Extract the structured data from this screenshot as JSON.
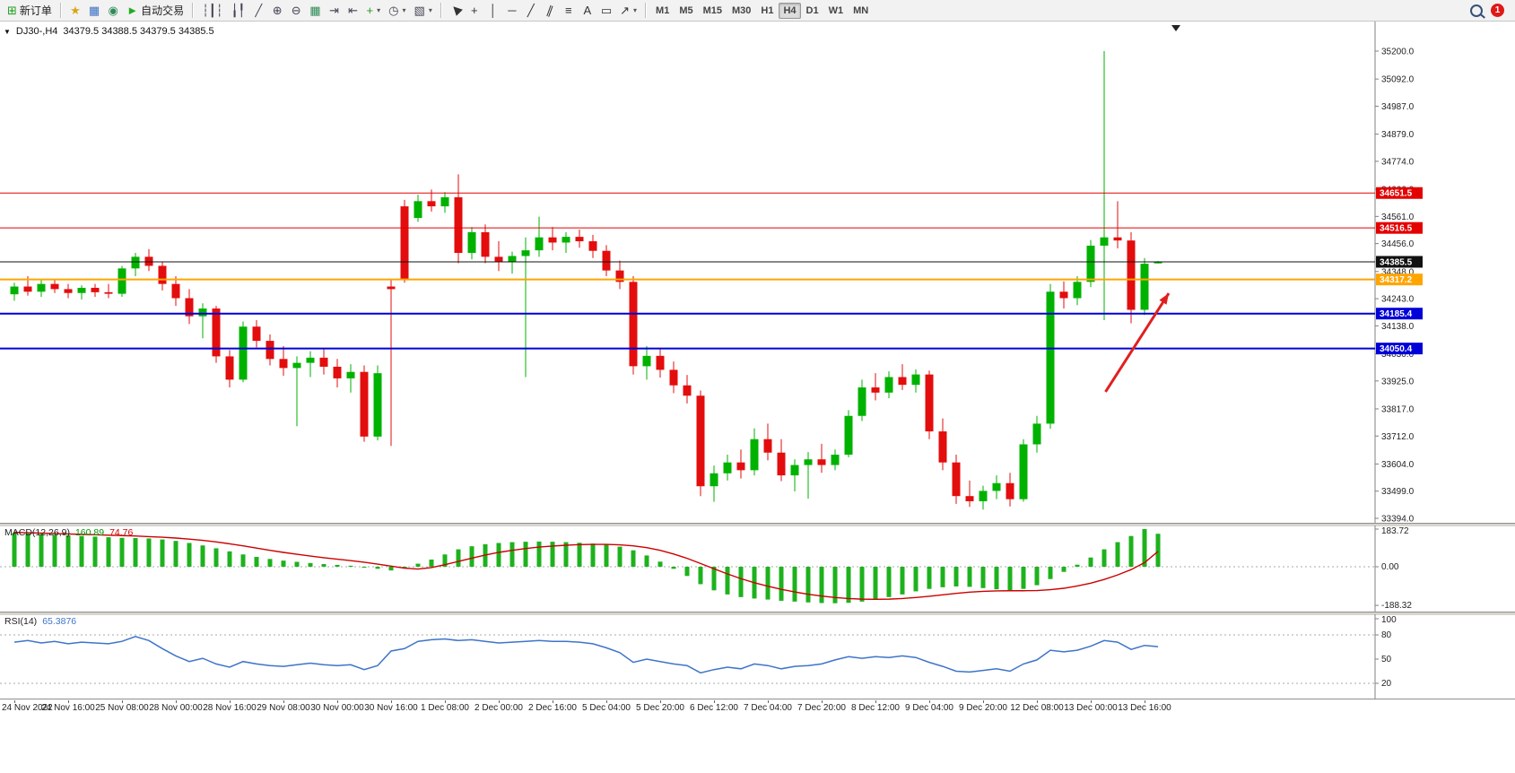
{
  "toolbar": {
    "new_order_label": "新订单",
    "autotrading_label": "自动交易",
    "items": [
      {
        "name": "new-order-button",
        "glyph": "⊞",
        "color": "#1d9e1d",
        "label": "新订单"
      },
      {
        "name": "sep"
      },
      {
        "name": "metaeditor-button",
        "glyph": "★",
        "color": "#d9a514"
      },
      {
        "name": "data-window-button",
        "glyph": "▦",
        "color": "#3a6fc4"
      },
      {
        "name": "market-watch-button",
        "glyph": "◉",
        "color": "#2e8b57"
      },
      {
        "name": "autotrading-button",
        "glyph": "►",
        "color": "#22aa22",
        "label": "自动交易"
      },
      {
        "name": "sep"
      },
      {
        "name": "bars-chart-button",
        "glyph": "┆┃┆",
        "color": "#445"
      },
      {
        "name": "candles-chart-button",
        "glyph": "╽╿",
        "color": "#445"
      },
      {
        "name": "line-chart-button",
        "glyph": "╱",
        "color": "#445"
      },
      {
        "name": "zoom-in-button",
        "glyph": "⊕",
        "color": "#445"
      },
      {
        "name": "zoom-out-button",
        "glyph": "⊖",
        "color": "#445"
      },
      {
        "name": "tile-windows-button",
        "glyph": "▦",
        "color": "#2e8b57"
      },
      {
        "name": "auto-scroll-button",
        "glyph": "⇥",
        "color": "#445"
      },
      {
        "name": "chart-shift-button",
        "glyph": "⇤",
        "color": "#445"
      },
      {
        "name": "new-indicator-button",
        "glyph": "+",
        "color": "#1d9e1d",
        "caret": true
      },
      {
        "name": "period-button",
        "glyph": "◷",
        "color": "#445",
        "caret": true
      },
      {
        "name": "template-button",
        "glyph": "▧",
        "color": "#445",
        "caret": true
      },
      {
        "name": "sep"
      },
      {
        "name": "cursor-button",
        "glyph": "▶",
        "color": "#333",
        "rot": -135
      },
      {
        "name": "crosshair-button",
        "glyph": "+",
        "color": "#333"
      },
      {
        "name": "vertical-line-button",
        "glyph": "│",
        "color": "#333"
      },
      {
        "name": "horizontal-line-button",
        "glyph": "─",
        "color": "#333"
      },
      {
        "name": "trendline-button",
        "glyph": "╱",
        "color": "#333"
      },
      {
        "name": "channel-button",
        "glyph": "∥",
        "color": "#333",
        "rot": 20
      },
      {
        "name": "fibonacci-button",
        "glyph": "≡",
        "color": "#333"
      },
      {
        "name": "text-button",
        "glyph": "A",
        "color": "#333"
      },
      {
        "name": "label-button",
        "glyph": "▭",
        "color": "#333"
      },
      {
        "name": "arrows-button",
        "glyph": "↗",
        "color": "#333",
        "caret": true
      },
      {
        "name": "sep"
      }
    ],
    "timeframes": [
      "M1",
      "M5",
      "M15",
      "M30",
      "H1",
      "H4",
      "D1",
      "W1",
      "MN"
    ],
    "active_timeframe": "H4",
    "notification_count": "1"
  },
  "glyphs": {
    "collapse": "▼",
    "caret": "▾",
    "scroll_marker": "▼"
  },
  "chart_header": {
    "symbol_period": "DJ30-,H4",
    "ohlc_text": "34379.5 34388.5 34379.5 34385.5"
  },
  "price_axis": {
    "ticks": [
      "35200.0",
      "35092.0",
      "34987.0",
      "34879.0",
      "34774.0",
      "34666.0",
      "34561.0",
      "34456.0",
      "34348.0",
      "34243.0",
      "34138.0",
      "34030.0",
      "33925.0",
      "33817.0",
      "33712.0",
      "33604.0",
      "33499.0",
      "33394.0"
    ]
  },
  "indicators": {
    "macd": {
      "label": "MACD(12,26,9)",
      "value_main": "160.89",
      "value_signal": "74.76",
      "axis_max": "183.72",
      "axis_zero": "0.00",
      "axis_min": "-188.32"
    },
    "rsi": {
      "label": "RSI(14)",
      "value": "65.3876",
      "axis_ticks": [
        "100",
        "80",
        "50",
        "20"
      ]
    }
  },
  "colors": {
    "up": "#00b200",
    "down": "#e30d0d",
    "macd_hist": "#1db21d",
    "macd_signal": "#cc0000",
    "rsi_line": "#3e74c9",
    "line_red": "#e30000",
    "line_orange": "#ffa500",
    "line_blue": "#0000d8",
    "bid_line": "#111111",
    "arrow": "#e02020",
    "axis": "#808080",
    "grid_dot": "#aaaaaa"
  },
  "chart_data": {
    "type": "candlestick",
    "symbol": "DJ30-",
    "timeframe": "H4",
    "bars": 86,
    "y_range": [
      33394,
      35200
    ],
    "current": {
      "open": 34379.5,
      "high": 34388.5,
      "low": 34379.5,
      "close": 34385.5,
      "bid": 34385.5
    },
    "x_labels": [
      "24 Nov 2022",
      "24 Nov 16:00",
      "25 Nov 08:00",
      "28 Nov 00:00",
      "28 Nov 16:00",
      "29 Nov 08:00",
      "30 Nov 00:00",
      "30 Nov 16:00",
      "1 Dec 08:00",
      "2 Dec 00:00",
      "2 Dec 16:00",
      "5 Dec 04:00",
      "5 Dec 20:00",
      "6 Dec 12:00",
      "7 Dec 04:00",
      "7 Dec 20:00",
      "8 Dec 12:00",
      "9 Dec 04:00",
      "9 Dec 20:00",
      "12 Dec 08:00",
      "13 Dec 00:00",
      "13 Dec 16:00"
    ],
    "bars_per_label": 4,
    "price_lines": [
      {
        "price": 34651.5,
        "label": "34651.5",
        "color_key": "line_red",
        "width": 1
      },
      {
        "price": 34516.5,
        "label": "34516.5",
        "color_key": "line_red",
        "width": 1
      },
      {
        "price": 34385.5,
        "label": "34385.5",
        "color_key": "bid_line",
        "width": 1
      },
      {
        "price": 34317.2,
        "label": "34317.2",
        "color_key": "line_orange",
        "width": 2
      },
      {
        "price": 34185.4,
        "label": "34185.4",
        "color_key": "line_blue",
        "width": 2
      },
      {
        "price": 34050.4,
        "label": "34050.4",
        "color_key": "line_blue",
        "width": 2
      }
    ],
    "annotations": [
      {
        "type": "arrow",
        "from_bar": 81.1,
        "from_price": 33883,
        "to_bar": 85.8,
        "to_price": 34264,
        "color_key": "arrow"
      }
    ],
    "candles": [
      [
        34260,
        34305,
        34235,
        34290
      ],
      [
        34290,
        34330,
        34255,
        34270
      ],
      [
        34270,
        34315,
        34250,
        34300
      ],
      [
        34300,
        34320,
        34265,
        34280
      ],
      [
        34280,
        34300,
        34245,
        34265
      ],
      [
        34265,
        34295,
        34240,
        34285
      ],
      [
        34285,
        34300,
        34250,
        34268
      ],
      [
        34268,
        34300,
        34245,
        34262
      ],
      [
        34262,
        34370,
        34250,
        34360
      ],
      [
        34360,
        34420,
        34330,
        34405
      ],
      [
        34405,
        34435,
        34350,
        34370
      ],
      [
        34370,
        34385,
        34275,
        34300
      ],
      [
        34300,
        34330,
        34215,
        34245
      ],
      [
        34245,
        34280,
        34145,
        34175
      ],
      [
        34175,
        34225,
        34090,
        34205
      ],
      [
        34205,
        34215,
        33995,
        34020
      ],
      [
        34020,
        34045,
        33900,
        33930
      ],
      [
        33930,
        34155,
        33920,
        34135
      ],
      [
        34135,
        34160,
        34055,
        34080
      ],
      [
        34080,
        34105,
        33985,
        34010
      ],
      [
        34010,
        34060,
        33945,
        33975
      ],
      [
        33975,
        34020,
        33750,
        33995
      ],
      [
        33995,
        34040,
        33940,
        34015
      ],
      [
        34015,
        34050,
        33950,
        33980
      ],
      [
        33980,
        34010,
        33900,
        33935
      ],
      [
        33935,
        33990,
        33880,
        33960
      ],
      [
        33960,
        33985,
        33690,
        33710
      ],
      [
        33710,
        33985,
        33695,
        33955
      ],
      [
        34290,
        34315,
        33674,
        34280
      ],
      [
        34600,
        34625,
        34305,
        34320
      ],
      [
        34555,
        34645,
        34540,
        34620
      ],
      [
        34620,
        34665,
        34580,
        34600
      ],
      [
        34600,
        34655,
        34575,
        34635
      ],
      [
        34635,
        34724,
        34380,
        34420
      ],
      [
        34420,
        34520,
        34395,
        34500
      ],
      [
        34500,
        34530,
        34380,
        34405
      ],
      [
        34405,
        34465,
        34350,
        34385
      ],
      [
        34385,
        34425,
        34340,
        34408
      ],
      [
        34408,
        34480,
        33940,
        34430
      ],
      [
        34430,
        34560,
        34405,
        34480
      ],
      [
        34480,
        34520,
        34430,
        34460
      ],
      [
        34460,
        34500,
        34420,
        34482
      ],
      [
        34482,
        34510,
        34440,
        34465
      ],
      [
        34465,
        34490,
        34400,
        34428
      ],
      [
        34428,
        34450,
        34330,
        34352
      ],
      [
        34352,
        34390,
        34280,
        34308
      ],
      [
        34308,
        34330,
        33950,
        33982
      ],
      [
        33982,
        34060,
        33930,
        34022
      ],
      [
        34022,
        34050,
        33938,
        33968
      ],
      [
        33968,
        34000,
        33878,
        33908
      ],
      [
        33908,
        33948,
        33838,
        33868
      ],
      [
        33868,
        33888,
        33480,
        33518
      ],
      [
        33518,
        33598,
        33458,
        33568
      ],
      [
        33568,
        33640,
        33540,
        33610
      ],
      [
        33610,
        33660,
        33548,
        33580
      ],
      [
        33580,
        33742,
        33560,
        33700
      ],
      [
        33700,
        33760,
        33618,
        33648
      ],
      [
        33648,
        33700,
        33538,
        33560
      ],
      [
        33560,
        33622,
        33498,
        33600
      ],
      [
        33600,
        33650,
        33470,
        33622
      ],
      [
        33622,
        33682,
        33570,
        33600
      ],
      [
        33600,
        33660,
        33580,
        33640
      ],
      [
        33640,
        33812,
        33630,
        33790
      ],
      [
        33790,
        33930,
        33770,
        33900
      ],
      [
        33900,
        33955,
        33850,
        33880
      ],
      [
        33880,
        33962,
        33858,
        33940
      ],
      [
        33940,
        33990,
        33890,
        33910
      ],
      [
        33910,
        33970,
        33880,
        33950
      ],
      [
        33950,
        33965,
        33700,
        33730
      ],
      [
        33730,
        33780,
        33580,
        33610
      ],
      [
        33610,
        33640,
        33450,
        33480
      ],
      [
        33480,
        33540,
        33438,
        33460
      ],
      [
        33460,
        33520,
        33428,
        33500
      ],
      [
        33500,
        33560,
        33468,
        33530
      ],
      [
        33530,
        33570,
        33440,
        33468
      ],
      [
        33468,
        33700,
        33458,
        33680
      ],
      [
        33680,
        33790,
        33648,
        33760
      ],
      [
        33760,
        34300,
        33740,
        34270
      ],
      [
        34270,
        34310,
        34205,
        34245
      ],
      [
        34245,
        34330,
        34218,
        34308
      ],
      [
        34308,
        34470,
        34288,
        34448
      ],
      [
        34448,
        35200,
        34160,
        34480
      ],
      [
        34480,
        34620,
        34438,
        34468
      ],
      [
        34468,
        34500,
        34148,
        34200
      ],
      [
        34200,
        34400,
        34180,
        34378
      ],
      [
        34379.5,
        34388.5,
        34379.5,
        34385.5
      ]
    ],
    "macd": {
      "range": [
        -188.32,
        183.72
      ],
      "histogram": [
        165,
        162,
        159,
        156,
        153,
        150,
        147,
        144,
        141,
        140,
        138,
        133,
        126,
        116,
        104,
        90,
        75,
        60,
        48,
        38,
        30,
        24,
        18,
        13,
        9,
        5,
        -3,
        -10,
        -18,
        -8,
        15,
        35,
        60,
        85,
        100,
        110,
        116,
        120,
        122,
        123,
        122,
        120,
        117,
        113,
        107,
        98,
        80,
        55,
        25,
        -10,
        -45,
        -85,
        -115,
        -135,
        -148,
        -155,
        -160,
        -166,
        -170,
        -174,
        -177,
        -178,
        -176,
        -170,
        -160,
        -148,
        -135,
        -120,
        -108,
        -100,
        -96,
        -98,
        -104,
        -110,
        -114,
        -108,
        -90,
        -60,
        -25,
        10,
        45,
        85,
        120,
        150,
        183.72,
        160.89
      ],
      "signal": [
        168,
        166,
        164,
        162,
        160,
        158,
        156,
        154,
        152,
        150,
        147,
        144,
        140,
        135,
        129,
        121,
        112,
        102,
        91,
        80,
        70,
        61,
        52,
        44,
        37,
        30,
        22,
        13,
        3,
        -7,
        -11,
        -4,
        10,
        26,
        42,
        57,
        70,
        80,
        89,
        96,
        101,
        105,
        108,
        109,
        109,
        107,
        102,
        93,
        80,
        62,
        41,
        16,
        -10,
        -35,
        -58,
        -78,
        -95,
        -110,
        -123,
        -134,
        -143,
        -150,
        -155,
        -158,
        -159,
        -158,
        -155,
        -150,
        -144,
        -137,
        -130,
        -124,
        -120,
        -118,
        -117,
        -117,
        -116,
        -112,
        -105,
        -94,
        -80,
        -62,
        -40,
        -14,
        20,
        74.76
      ]
    },
    "rsi": {
      "range": [
        0,
        100
      ],
      "levels": [
        80,
        20
      ],
      "values": [
        71,
        73,
        70,
        72,
        69,
        71,
        70,
        69,
        72,
        78,
        73,
        63,
        54,
        47,
        51,
        44,
        40,
        47,
        44,
        42,
        41,
        43,
        45,
        43,
        42,
        43,
        37,
        42,
        60,
        63,
        72,
        74,
        75,
        73,
        74,
        72,
        70,
        71,
        72,
        73,
        72,
        72,
        71,
        69,
        64,
        58,
        46,
        50,
        47,
        44,
        42,
        33,
        37,
        40,
        38,
        44,
        42,
        38,
        41,
        42,
        44,
        49,
        53,
        51,
        53,
        52,
        54,
        52,
        46,
        41,
        35,
        34,
        36,
        38,
        35,
        44,
        49,
        61,
        59,
        61,
        66,
        73,
        71,
        62,
        67,
        65.39
      ]
    }
  }
}
